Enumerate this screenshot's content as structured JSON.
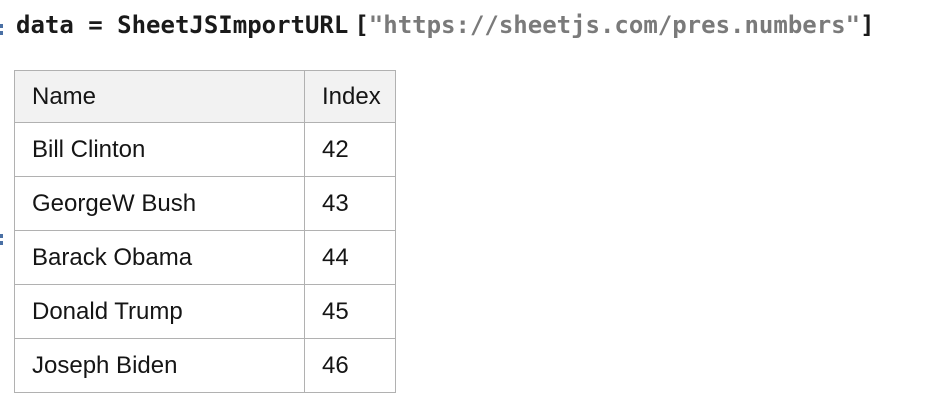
{
  "notebook": {
    "code": {
      "head": "data = SheetJSImportURL",
      "open_bracket": "[",
      "string": "\"https://sheetjs.com/pres.numbers\"",
      "close_bracket": "]"
    },
    "markers": {
      "input_label_glyph": ":",
      "output_label_glyph": ":"
    }
  },
  "table": {
    "columns": [
      "Name",
      "Index"
    ],
    "rows": [
      {
        "name": "Bill Clinton",
        "index": "42"
      },
      {
        "name": "GeorgeW Bush",
        "index": "43"
      },
      {
        "name": "Barack Obama",
        "index": "44"
      },
      {
        "name": "Donald Trump",
        "index": "45"
      },
      {
        "name": "Joseph Biden",
        "index": "46"
      }
    ]
  },
  "colors": {
    "code_text": "#1a1a1a",
    "code_string": "#7a7a7a",
    "marker_blue": "#4a70a4",
    "table_border": "#b1b1b1",
    "table_header_bg": "#f2f2f2",
    "background": "#ffffff"
  }
}
